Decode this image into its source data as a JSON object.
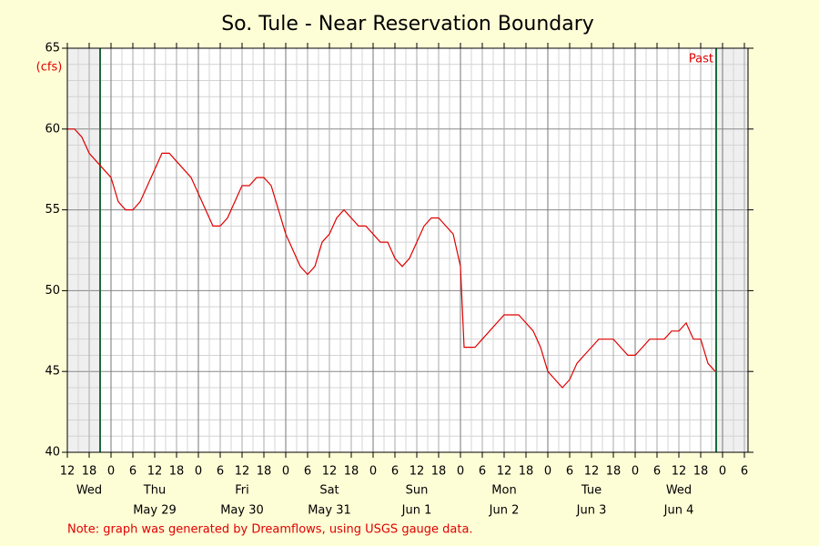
{
  "chart_data": {
    "type": "line",
    "title": "So. Tule - Near Reservation Boundary",
    "y_label": "(cfs)",
    "note": "Note: graph was generated by Dreamflows, using USGS gauge data.",
    "marker_label": "Past",
    "color": "#e00000",
    "marker_color": "#1a6b3c",
    "grid": true,
    "ylim": [
      40,
      65
    ],
    "yticks": [
      40,
      45,
      50,
      55,
      60,
      65
    ],
    "xlim": [
      0,
      187
    ],
    "marker_lines": [
      9,
      178.25
    ],
    "xticks": [
      {
        "value": 0,
        "label": "12"
      },
      {
        "value": 6,
        "label": "18"
      },
      {
        "value": 12,
        "label": "0"
      },
      {
        "value": 18,
        "label": "6"
      },
      {
        "value": 24,
        "label": "12"
      },
      {
        "value": 30,
        "label": "18"
      },
      {
        "value": 36,
        "label": "0"
      },
      {
        "value": 42,
        "label": "6"
      },
      {
        "value": 48,
        "label": "12"
      },
      {
        "value": 54,
        "label": "18"
      },
      {
        "value": 60,
        "label": "0"
      },
      {
        "value": 66,
        "label": "6"
      },
      {
        "value": 72,
        "label": "12"
      },
      {
        "value": 78,
        "label": "18"
      },
      {
        "value": 84,
        "label": "0"
      },
      {
        "value": 90,
        "label": "6"
      },
      {
        "value": 96,
        "label": "12"
      },
      {
        "value": 102,
        "label": "18"
      },
      {
        "value": 108,
        "label": "0"
      },
      {
        "value": 114,
        "label": "6"
      },
      {
        "value": 120,
        "label": "12"
      },
      {
        "value": 126,
        "label": "18"
      },
      {
        "value": 132,
        "label": "0"
      },
      {
        "value": 138,
        "label": "6"
      },
      {
        "value": 144,
        "label": "12"
      },
      {
        "value": 150,
        "label": "18"
      },
      {
        "value": 156,
        "label": "0"
      },
      {
        "value": 162,
        "label": "6"
      },
      {
        "value": 168,
        "label": "12"
      },
      {
        "value": 174,
        "label": "18"
      },
      {
        "value": 180,
        "label": "0"
      },
      {
        "value": 186,
        "label": "6"
      }
    ],
    "days": [
      {
        "value": 6,
        "day": "Wed",
        "date": null
      },
      {
        "value": 24,
        "day": "Thu",
        "date": "May 29"
      },
      {
        "value": 48,
        "day": "Fri",
        "date": "May 30"
      },
      {
        "value": 72,
        "day": "Sat",
        "date": "May 31"
      },
      {
        "value": 96,
        "day": "Sun",
        "date": "Jun 1"
      },
      {
        "value": 120,
        "day": "Mon",
        "date": "Jun 2"
      },
      {
        "value": 144,
        "day": "Tue",
        "date": "Jun 3"
      },
      {
        "value": 168,
        "day": "Wed",
        "date": "Jun 4"
      }
    ],
    "x": [
      0,
      2,
      4,
      6,
      8,
      10,
      12,
      14,
      16,
      18,
      20,
      22,
      24,
      26,
      28,
      30,
      32,
      34,
      36,
      38,
      40,
      42,
      44,
      46,
      48,
      50,
      52,
      54,
      56,
      58,
      60,
      62,
      64,
      66,
      68,
      70,
      72,
      74,
      76,
      78,
      80,
      82,
      84,
      86,
      88,
      90,
      92,
      94,
      96,
      98,
      100,
      102,
      104,
      106,
      108,
      109,
      110,
      112,
      114,
      116,
      118,
      120,
      122,
      124,
      126,
      128,
      130,
      132,
      134,
      136,
      138,
      140,
      142,
      144,
      146,
      148,
      150,
      152,
      154,
      156,
      158,
      160,
      162,
      164,
      166,
      168,
      170,
      172,
      174,
      176,
      178
    ],
    "values": [
      60,
      60,
      59.5,
      58.5,
      58,
      57.5,
      57,
      55.5,
      55,
      55,
      55.5,
      56.5,
      57.5,
      58.5,
      58.5,
      58,
      57.5,
      57,
      56,
      55,
      54,
      54,
      54.5,
      55.5,
      56.5,
      56.5,
      57,
      57,
      56.5,
      55,
      53.5,
      52.5,
      51.5,
      51,
      51.5,
      53,
      53.5,
      54.5,
      55,
      54.5,
      54,
      54,
      53.5,
      53,
      53,
      52,
      51.5,
      52,
      53,
      54,
      54.5,
      54.5,
      54,
      53.5,
      51.5,
      46.5,
      46.5,
      46.5,
      47,
      47.5,
      48,
      48.5,
      48.5,
      48.5,
      48,
      47.5,
      46.5,
      45,
      44.5,
      44,
      44.5,
      45.5,
      46,
      46.5,
      47,
      47,
      47,
      46.5,
      46,
      46,
      46.5,
      47,
      47,
      47,
      47.5,
      47.5,
      48,
      47,
      47,
      45.5,
      45
    ]
  }
}
